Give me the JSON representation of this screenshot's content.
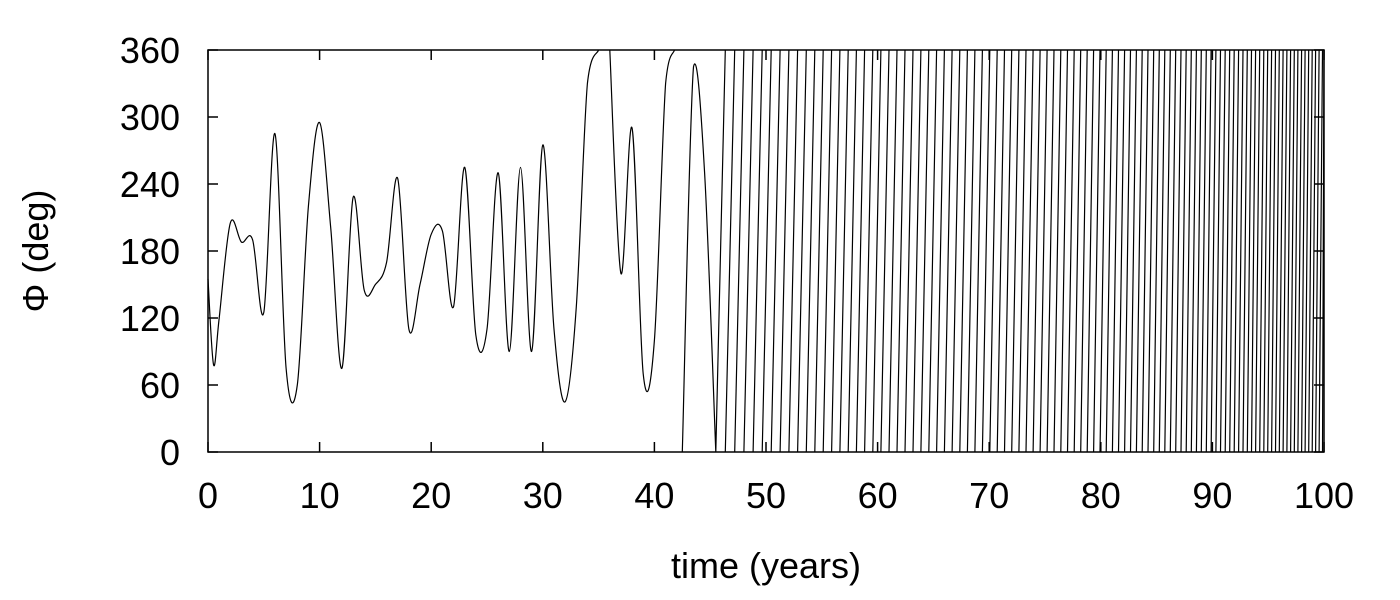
{
  "chart_data": {
    "type": "line",
    "title": "",
    "xlabel": "time (years)",
    "ylabel": "Φ (deg)",
    "xlim": [
      0,
      100
    ],
    "ylim": [
      0,
      360
    ],
    "xticks": [
      0,
      10,
      20,
      30,
      40,
      50,
      60,
      70,
      80,
      90,
      100
    ],
    "yticks": [
      0,
      60,
      120,
      180,
      240,
      300,
      360
    ],
    "grid": false,
    "legend": "none",
    "line_color": "#000000",
    "series": [
      {
        "phase_keypoints": {
          "x": [
            0,
            0.5,
            1,
            2,
            3,
            4,
            5,
            6,
            7,
            8,
            9,
            10,
            11,
            12,
            13,
            14,
            15,
            16,
            17,
            18,
            19,
            20,
            21,
            22,
            23,
            24,
            25,
            26,
            27,
            28,
            29,
            30,
            31,
            32,
            33,
            34,
            35,
            35.5,
            36,
            37,
            38,
            39,
            40,
            41,
            41.8,
            42.5,
            43.5,
            44.5,
            45.5
          ],
          "y": [
            155,
            78,
            120,
            205,
            188,
            190,
            125,
            285,
            75,
            60,
            220,
            295,
            200,
            75,
            228,
            145,
            150,
            170,
            245,
            110,
            150,
            195,
            198,
            130,
            255,
            105,
            110,
            250,
            90,
            255,
            90,
            275,
            110,
            45,
            130,
            330,
            360,
            0,
            360,
            160,
            290,
            70,
            100,
            330,
            360,
            0,
            345,
            250,
            0
          ]
        },
        "fast_rotation": {
          "x": [
            45.5,
            55,
            65,
            75,
            85,
            95,
            100
          ],
          "period_years": [
            0.85,
            0.75,
            0.7,
            0.62,
            0.5,
            0.35,
            0.3
          ]
        }
      }
    ]
  }
}
